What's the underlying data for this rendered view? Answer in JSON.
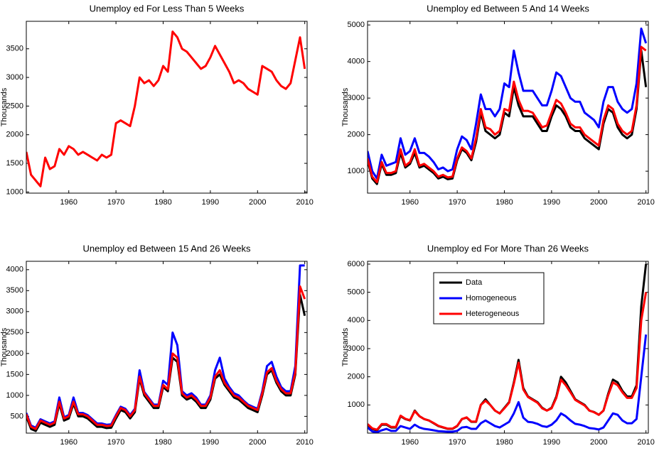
{
  "chart_data": [
    {
      "type": "line",
      "title": "Unemploy ed For Less Than 5 Weeks",
      "ylabel": "Thousands",
      "x": [
        1951,
        1952,
        1953,
        1954,
        1955,
        1956,
        1957,
        1958,
        1959,
        1960,
        1961,
        1962,
        1963,
        1964,
        1965,
        1966,
        1967,
        1968,
        1969,
        1970,
        1971,
        1972,
        1973,
        1974,
        1975,
        1976,
        1977,
        1978,
        1979,
        1980,
        1981,
        1982,
        1983,
        1984,
        1985,
        1986,
        1987,
        1988,
        1989,
        1990,
        1991,
        1992,
        1993,
        1994,
        1995,
        1996,
        1997,
        1998,
        1999,
        2000,
        2001,
        2002,
        2003,
        2004,
        2005,
        2006,
        2007,
        2008,
        2009,
        2010
      ],
      "series": [
        {
          "color": "#ff0000",
          "values": [
            1700,
            1300,
            1200,
            1100,
            1600,
            1400,
            1450,
            1750,
            1650,
            1800,
            1750,
            1650,
            1700,
            1650,
            1600,
            1550,
            1650,
            1600,
            1650,
            2200,
            2250,
            2200,
            2150,
            2500,
            3000,
            2900,
            2950,
            2850,
            2950,
            3200,
            3100,
            3800,
            3700,
            3500,
            3450,
            3350,
            3250,
            3150,
            3200,
            3350,
            3550,
            3400,
            3250,
            3100,
            2900,
            2950,
            2900,
            2800,
            2750,
            2700,
            3200,
            3150,
            3100,
            2950,
            2850,
            2800,
            2900,
            3300,
            3700,
            3150
          ]
        }
      ],
      "xlim": [
        1951,
        2010.5
      ],
      "ylim": [
        980,
        3980
      ],
      "xticks": [
        1960,
        1970,
        1980,
        1990,
        2000,
        2010
      ],
      "yticks": [
        1000,
        1500,
        2000,
        2500,
        3000,
        3500
      ]
    },
    {
      "type": "line",
      "title": "Unemploy ed Between 5 And 14 Weeks",
      "ylabel": "Thousands",
      "x": [
        1951,
        1952,
        1953,
        1954,
        1955,
        1956,
        1957,
        1958,
        1959,
        1960,
        1961,
        1962,
        1963,
        1964,
        1965,
        1966,
        1967,
        1968,
        1969,
        1970,
        1971,
        1972,
        1973,
        1974,
        1975,
        1976,
        1977,
        1978,
        1979,
        1980,
        1981,
        1982,
        1983,
        1984,
        1985,
        1986,
        1987,
        1988,
        1989,
        1990,
        1991,
        1992,
        1993,
        1994,
        1995,
        1996,
        1997,
        1998,
        1999,
        2000,
        2001,
        2002,
        2003,
        2004,
        2005,
        2006,
        2007,
        2008,
        2009,
        2010
      ],
      "series": [
        {
          "color": "#000000",
          "values": [
            1300,
            800,
            650,
            1200,
            900,
            900,
            950,
            1500,
            1100,
            1200,
            1500,
            1100,
            1150,
            1050,
            950,
            800,
            850,
            780,
            800,
            1300,
            1600,
            1500,
            1300,
            1800,
            2600,
            2100,
            2000,
            1900,
            2000,
            2600,
            2500,
            3300,
            2800,
            2500,
            2500,
            2500,
            2300,
            2100,
            2100,
            2500,
            2800,
            2700,
            2500,
            2200,
            2100,
            2100,
            1900,
            1800,
            1700,
            1600,
            2300,
            2700,
            2600,
            2200,
            2000,
            1900,
            2000,
            2700,
            4300,
            3300
          ]
        },
        {
          "color": "#0000ff",
          "values": [
            1550,
            1000,
            800,
            1450,
            1150,
            1200,
            1250,
            1900,
            1450,
            1550,
            1900,
            1500,
            1500,
            1400,
            1250,
            1050,
            1100,
            1000,
            1050,
            1600,
            1950,
            1850,
            1600,
            2300,
            3100,
            2700,
            2700,
            2500,
            2700,
            3400,
            3300,
            4300,
            3700,
            3200,
            3200,
            3200,
            3000,
            2800,
            2800,
            3200,
            3700,
            3600,
            3300,
            3000,
            2900,
            2900,
            2600,
            2500,
            2400,
            2200,
            2900,
            3300,
            3300,
            2900,
            2700,
            2600,
            2700,
            3400,
            4900,
            4500
          ]
        },
        {
          "color": "#ff0000",
          "values": [
            1350,
            850,
            700,
            1250,
            950,
            950,
            1000,
            1600,
            1150,
            1250,
            1600,
            1150,
            1200,
            1100,
            1000,
            850,
            900,
            830,
            850,
            1350,
            1650,
            1550,
            1350,
            1900,
            2700,
            2200,
            2150,
            2000,
            2100,
            2700,
            2650,
            3450,
            2950,
            2650,
            2650,
            2600,
            2400,
            2200,
            2250,
            2600,
            2950,
            2850,
            2600,
            2300,
            2200,
            2200,
            2000,
            1900,
            1800,
            1700,
            2400,
            2800,
            2700,
            2300,
            2100,
            2000,
            2100,
            2800,
            4400,
            4300
          ]
        }
      ],
      "xlim": [
        1951,
        2010.5
      ],
      "ylim": [
        400,
        5100
      ],
      "xticks": [
        1960,
        1970,
        1980,
        1990,
        2000,
        2010
      ],
      "yticks": [
        1000,
        2000,
        3000,
        4000,
        5000
      ]
    },
    {
      "type": "line",
      "title": "Unemploy ed Between 15 And 26 Weeks",
      "ylabel": "Thousands",
      "x": [
        1951,
        1952,
        1953,
        1954,
        1955,
        1956,
        1957,
        1958,
        1959,
        1960,
        1961,
        1962,
        1963,
        1964,
        1965,
        1966,
        1967,
        1968,
        1969,
        1970,
        1971,
        1972,
        1973,
        1974,
        1975,
        1976,
        1977,
        1978,
        1979,
        1980,
        1981,
        1982,
        1983,
        1984,
        1985,
        1986,
        1987,
        1988,
        1989,
        1990,
        1991,
        1992,
        1993,
        1994,
        1995,
        1996,
        1997,
        1998,
        1999,
        2000,
        2001,
        2002,
        2003,
        2004,
        2005,
        2006,
        2007,
        2008,
        2009,
        2010
      ],
      "series": [
        {
          "color": "#000000",
          "values": [
            500,
            200,
            150,
            350,
            300,
            250,
            300,
            800,
            400,
            450,
            800,
            500,
            500,
            450,
            350,
            250,
            250,
            220,
            230,
            450,
            650,
            600,
            450,
            600,
            1400,
            1000,
            850,
            700,
            700,
            1200,
            1100,
            1900,
            1800,
            1000,
            900,
            950,
            850,
            700,
            700,
            900,
            1400,
            1500,
            1250,
            1100,
            950,
            900,
            800,
            700,
            650,
            600,
            1000,
            1500,
            1600,
            1300,
            1100,
            1000,
            1000,
            1500,
            3400,
            2900
          ]
        },
        {
          "color": "#0000ff",
          "values": [
            580,
            280,
            230,
            430,
            380,
            330,
            380,
            950,
            480,
            530,
            950,
            580,
            580,
            530,
            430,
            330,
            330,
            300,
            310,
            530,
            730,
            680,
            530,
            680,
            1600,
            1080,
            930,
            780,
            780,
            1350,
            1250,
            2500,
            2200,
            1100,
            1000,
            1050,
            950,
            780,
            780,
            1000,
            1600,
            1900,
            1400,
            1200,
            1050,
            1000,
            880,
            780,
            730,
            680,
            1100,
            1700,
            1800,
            1450,
            1200,
            1100,
            1100,
            1700,
            4100,
            4100
          ]
        },
        {
          "color": "#ff0000",
          "values": [
            550,
            250,
            200,
            400,
            350,
            300,
            350,
            850,
            450,
            500,
            850,
            550,
            550,
            500,
            400,
            300,
            300,
            270,
            280,
            500,
            700,
            650,
            500,
            650,
            1450,
            1050,
            900,
            750,
            750,
            1250,
            1150,
            2000,
            1900,
            1050,
            950,
            1000,
            900,
            750,
            750,
            950,
            1450,
            1600,
            1300,
            1150,
            1000,
            950,
            850,
            750,
            700,
            650,
            1050,
            1550,
            1650,
            1350,
            1150,
            1050,
            1050,
            1550,
            3600,
            3300
          ]
        }
      ],
      "xlim": [
        1951,
        2010.5
      ],
      "ylim": [
        100,
        4200
      ],
      "xticks": [
        1960,
        1970,
        1980,
        1990,
        2000,
        2010
      ],
      "yticks": [
        500,
        1000,
        1500,
        2000,
        2500,
        3000,
        3500,
        4000
      ]
    },
    {
      "type": "line",
      "title": "Unemploy ed For More Than 26 Weeks",
      "ylabel": "Thousands",
      "legend": "upper left",
      "x": [
        1951,
        1952,
        1953,
        1954,
        1955,
        1956,
        1957,
        1958,
        1959,
        1960,
        1961,
        1962,
        1963,
        1964,
        1965,
        1966,
        1967,
        1968,
        1969,
        1970,
        1971,
        1972,
        1973,
        1974,
        1975,
        1976,
        1977,
        1978,
        1979,
        1980,
        1981,
        1982,
        1983,
        1984,
        1985,
        1986,
        1987,
        1988,
        1989,
        1990,
        1991,
        1992,
        1993,
        1994,
        1995,
        1996,
        1997,
        1998,
        1999,
        2000,
        2001,
        2002,
        2003,
        2004,
        2005,
        2006,
        2007,
        2008,
        2009,
        2010
      ],
      "series": [
        {
          "name": "Data",
          "color": "#000000",
          "values": [
            300,
            150,
            100,
            300,
            300,
            200,
            200,
            600,
            500,
            450,
            800,
            600,
            500,
            450,
            350,
            250,
            200,
            150,
            150,
            250,
            500,
            550,
            400,
            400,
            1000,
            1200,
            1000,
            800,
            700,
            900,
            1100,
            1800,
            2600,
            1600,
            1300,
            1200,
            1100,
            900,
            800,
            900,
            1300,
            2000,
            1800,
            1500,
            1200,
            1100,
            1000,
            800,
            750,
            650,
            800,
            1400,
            1900,
            1800,
            1500,
            1300,
            1300,
            1700,
            4500,
            6000
          ]
        },
        {
          "name": "Homogeneous",
          "color": "#0000ff",
          "values": [
            200,
            60,
            30,
            100,
            150,
            80,
            80,
            250,
            200,
            150,
            300,
            200,
            150,
            130,
            100,
            70,
            60,
            50,
            50,
            80,
            200,
            220,
            150,
            150,
            350,
            450,
            350,
            250,
            200,
            300,
            400,
            700,
            1100,
            550,
            400,
            380,
            330,
            250,
            220,
            300,
            450,
            700,
            600,
            450,
            330,
            300,
            250,
            180,
            160,
            130,
            200,
            450,
            700,
            650,
            450,
            350,
            350,
            500,
            2000,
            3500
          ]
        },
        {
          "name": "Heterogeneous",
          "color": "#ff0000",
          "values": [
            320,
            170,
            120,
            320,
            320,
            220,
            220,
            620,
            510,
            460,
            780,
            600,
            500,
            450,
            360,
            260,
            210,
            160,
            160,
            260,
            500,
            560,
            410,
            410,
            1000,
            1150,
            1000,
            800,
            700,
            880,
            1080,
            1750,
            2500,
            1550,
            1280,
            1180,
            1080,
            880,
            800,
            880,
            1250,
            1900,
            1700,
            1450,
            1180,
            1080,
            980,
            800,
            740,
            650,
            800,
            1350,
            1800,
            1700,
            1450,
            1250,
            1250,
            1600,
            4000,
            5000
          ]
        }
      ],
      "xlim": [
        1951,
        2010.5
      ],
      "ylim": [
        0,
        6100
      ],
      "xticks": [
        1960,
        1970,
        1980,
        1990,
        2000,
        2010
      ],
      "yticks": [
        1000,
        2000,
        3000,
        4000,
        5000,
        6000
      ]
    }
  ]
}
